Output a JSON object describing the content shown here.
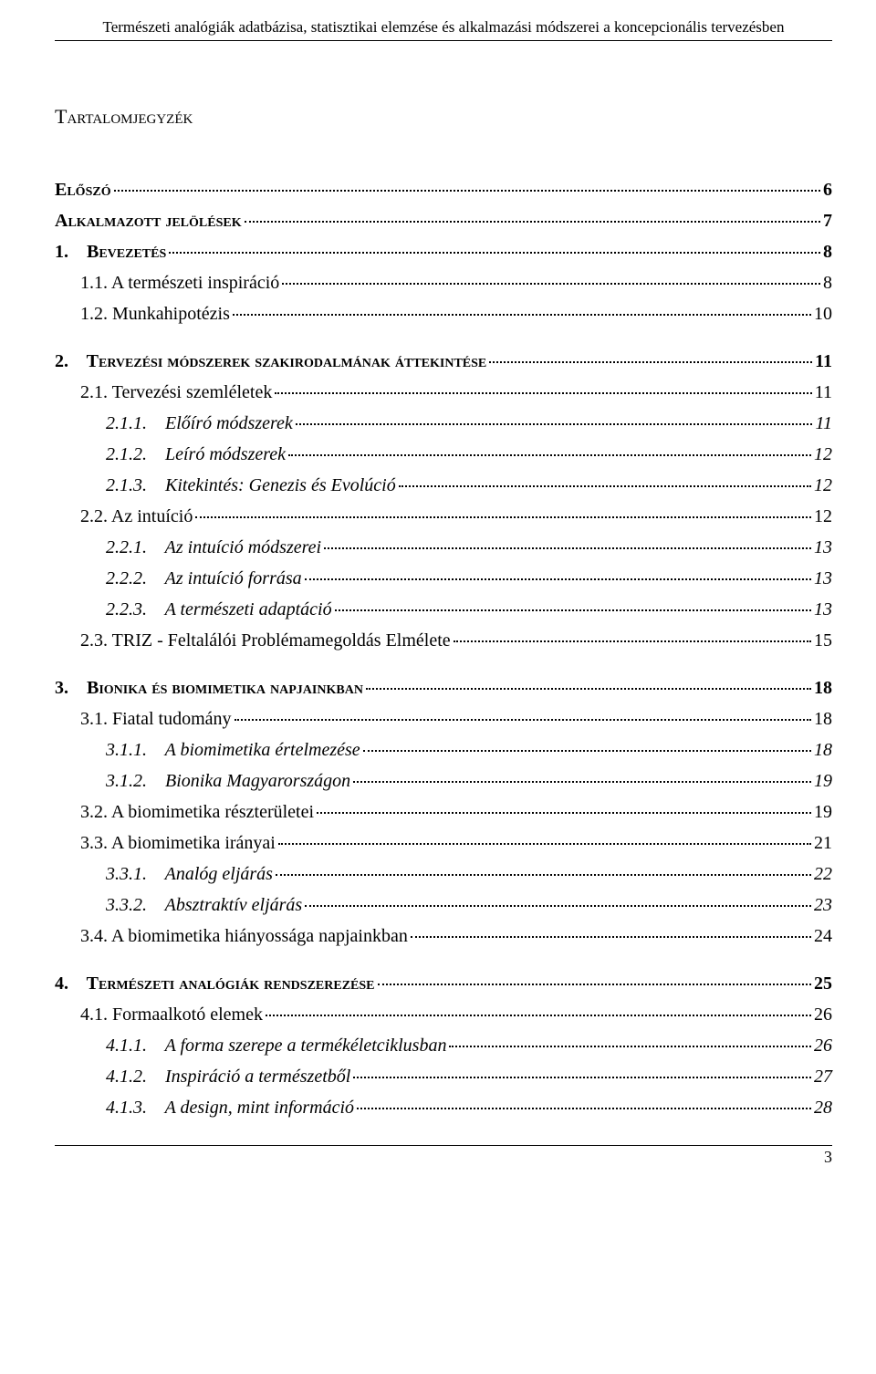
{
  "header": "Természeti analógiák adatbázisa, statisztikai elemzése és alkalmazási módszerei a koncepcionális tervezésben",
  "title": "Tartalomjegyzék",
  "footer_page": "3",
  "toc": [
    {
      "cls": "lvl0",
      "label": "Előszó",
      "page": "6"
    },
    {
      "cls": "lvl0",
      "label": "Alkalmazott jelölések",
      "page": "7"
    },
    {
      "cls": "lvl1-bold",
      "label": "1.    Bevezetés",
      "page": "8"
    },
    {
      "cls": "lvl2",
      "label": "1.1. A természeti inspiráció",
      "page": "8"
    },
    {
      "cls": "lvl2",
      "label": "1.2. Munkahipotézis",
      "page": "10"
    },
    {
      "gap": true
    },
    {
      "cls": "lvl1-bold",
      "label": "2.    Tervezési módszerek szakirodalmának áttekintése",
      "page": "11"
    },
    {
      "cls": "lvl2",
      "label": "2.1. Tervezési szemléletek",
      "page": "11"
    },
    {
      "cls": "lvl3",
      "label": "2.1.1.    Előíró módszerek",
      "page": "11"
    },
    {
      "cls": "lvl3",
      "label": "2.1.2.    Leíró módszerek",
      "page": "12"
    },
    {
      "cls": "lvl3",
      "label": "2.1.3.    Kitekintés: Genezis és Evolúció",
      "page": "12"
    },
    {
      "cls": "lvl2",
      "label": "2.2. Az intuíció",
      "page": "12"
    },
    {
      "cls": "lvl3",
      "label": "2.2.1.    Az intuíció módszerei",
      "page": "13"
    },
    {
      "cls": "lvl3",
      "label": "2.2.2.    Az intuíció forrása",
      "page": "13"
    },
    {
      "cls": "lvl3",
      "label": "2.2.3.    A természeti adaptáció",
      "page": "13"
    },
    {
      "cls": "lvl2",
      "label": "2.3. TRIZ - Feltalálói Problémamegoldás Elmélete",
      "page": "15"
    },
    {
      "gap": true
    },
    {
      "cls": "lvl1-bold",
      "label": "3.    Bionika és biomimetika napjainkban",
      "page": "18"
    },
    {
      "cls": "lvl2",
      "label": "3.1. Fiatal tudomány",
      "page": "18"
    },
    {
      "cls": "lvl3",
      "label": "3.1.1.    A biomimetika értelmezése",
      "page": "18"
    },
    {
      "cls": "lvl3",
      "label": "3.1.2.    Bionika Magyarországon",
      "page": "19"
    },
    {
      "cls": "lvl2",
      "label": "3.2. A biomimetika részterületei",
      "page": "19"
    },
    {
      "cls": "lvl2",
      "label": "3.3. A biomimetika irányai",
      "page": "21"
    },
    {
      "cls": "lvl3",
      "label": "3.3.1.    Analóg eljárás",
      "page": "22"
    },
    {
      "cls": "lvl3",
      "label": "3.3.2.    Absztraktív eljárás",
      "page": "23"
    },
    {
      "cls": "lvl2",
      "label": "3.4. A biomimetika hiányossága napjainkban",
      "page": "24"
    },
    {
      "gap": true
    },
    {
      "cls": "lvl1-bold",
      "label": "4.    Természeti analógiák rendszerezése",
      "page": "25"
    },
    {
      "cls": "lvl2",
      "label": "4.1. Formaalkotó elemek",
      "page": "26"
    },
    {
      "cls": "lvl3",
      "label": "4.1.1.    A forma szerepe a termékéletciklusban",
      "page": "26"
    },
    {
      "cls": "lvl3",
      "label": "4.1.2.    Inspiráció a természetből",
      "page": "27"
    },
    {
      "cls": "lvl3",
      "label": "4.1.3.    A design, mint információ",
      "page": "28"
    }
  ]
}
